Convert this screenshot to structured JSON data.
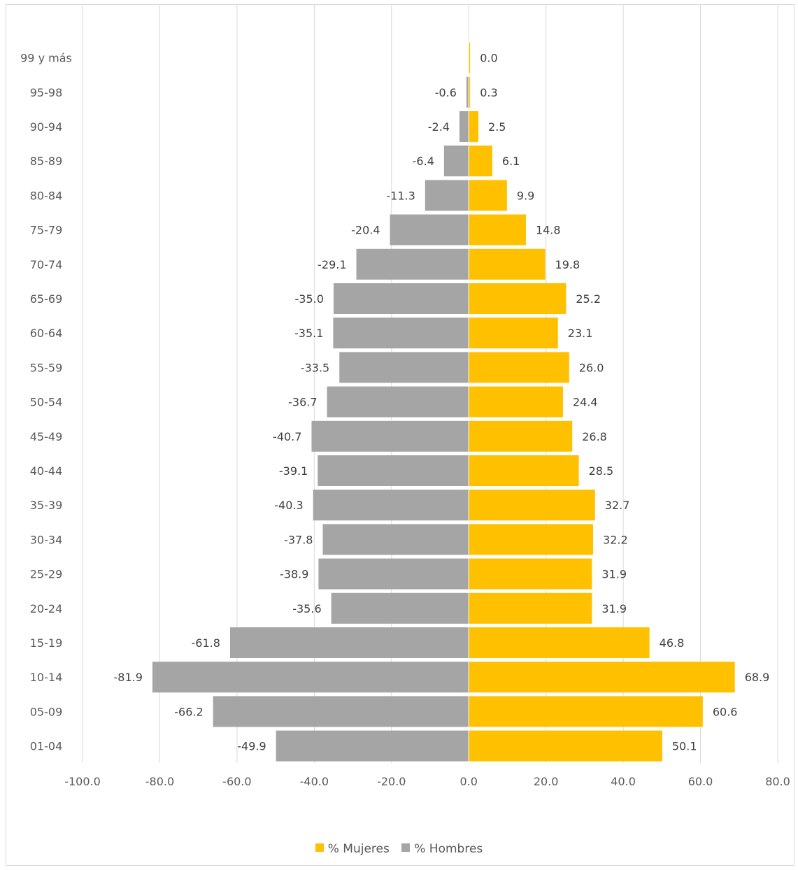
{
  "chart_data": {
    "type": "bar",
    "orientation": "horizontal",
    "stacked": true,
    "title": "",
    "categories": [
      "99 y más",
      "95-98",
      "90-94",
      "85-89",
      "80-84",
      "75-79",
      "70-74",
      "65-69",
      "60-64",
      "55-59",
      "50-54",
      "45-49",
      "40-44",
      "35-39",
      "30-34",
      "25-29",
      "20-24",
      "15-19",
      "10-14",
      "05-09",
      "01-04"
    ],
    "series": [
      {
        "name": "% Mujeres",
        "color": "#ffc000",
        "values": [
          0.0,
          0.3,
          2.5,
          6.1,
          9.9,
          14.8,
          19.8,
          25.2,
          23.1,
          26.0,
          24.4,
          26.8,
          28.5,
          32.7,
          32.2,
          31.9,
          31.9,
          46.8,
          68.9,
          60.6,
          50.1
        ],
        "labels": [
          "0.0",
          "0.3",
          "2.5",
          "6.1",
          "9.9",
          "14.8",
          "19.8",
          "25.2",
          "23.1",
          "26.0",
          "24.4",
          "26.8",
          "28.5",
          "32.7",
          "32.2",
          "31.9",
          "31.9",
          "46.8",
          "68.9",
          "60.6",
          "50.1"
        ]
      },
      {
        "name": "% Hombres",
        "color": "#a5a5a5",
        "values": [
          0.0,
          -0.6,
          -2.4,
          -6.4,
          -11.3,
          -20.4,
          -29.1,
          -35.0,
          -35.1,
          -33.5,
          -36.7,
          -40.7,
          -39.1,
          -40.3,
          -37.8,
          -38.9,
          -35.6,
          -61.8,
          -81.9,
          -66.2,
          -49.9
        ],
        "labels": [
          "",
          "-0.6",
          "-2.4",
          "-6.4",
          "-11.3",
          "-20.4",
          "-29.1",
          "-35.0",
          "-35.1",
          "-33.5",
          "-36.7",
          "-40.7",
          "-39.1",
          "-40.3",
          "-37.8",
          "-38.9",
          "-35.6",
          "-61.8",
          "-81.9",
          "-66.2",
          "-49.9"
        ]
      }
    ],
    "xlim": [
      -100,
      80
    ],
    "xticks": [
      "-100.0",
      "-80.0",
      "-60.0",
      "-40.0",
      "-20.0",
      "0.0",
      "20.0",
      "40.0",
      "60.0",
      "80.0"
    ],
    "grid": true,
    "legend_position": "bottom"
  },
  "legend": {
    "women_label": "% Mujeres",
    "men_label": "% Hombres"
  }
}
